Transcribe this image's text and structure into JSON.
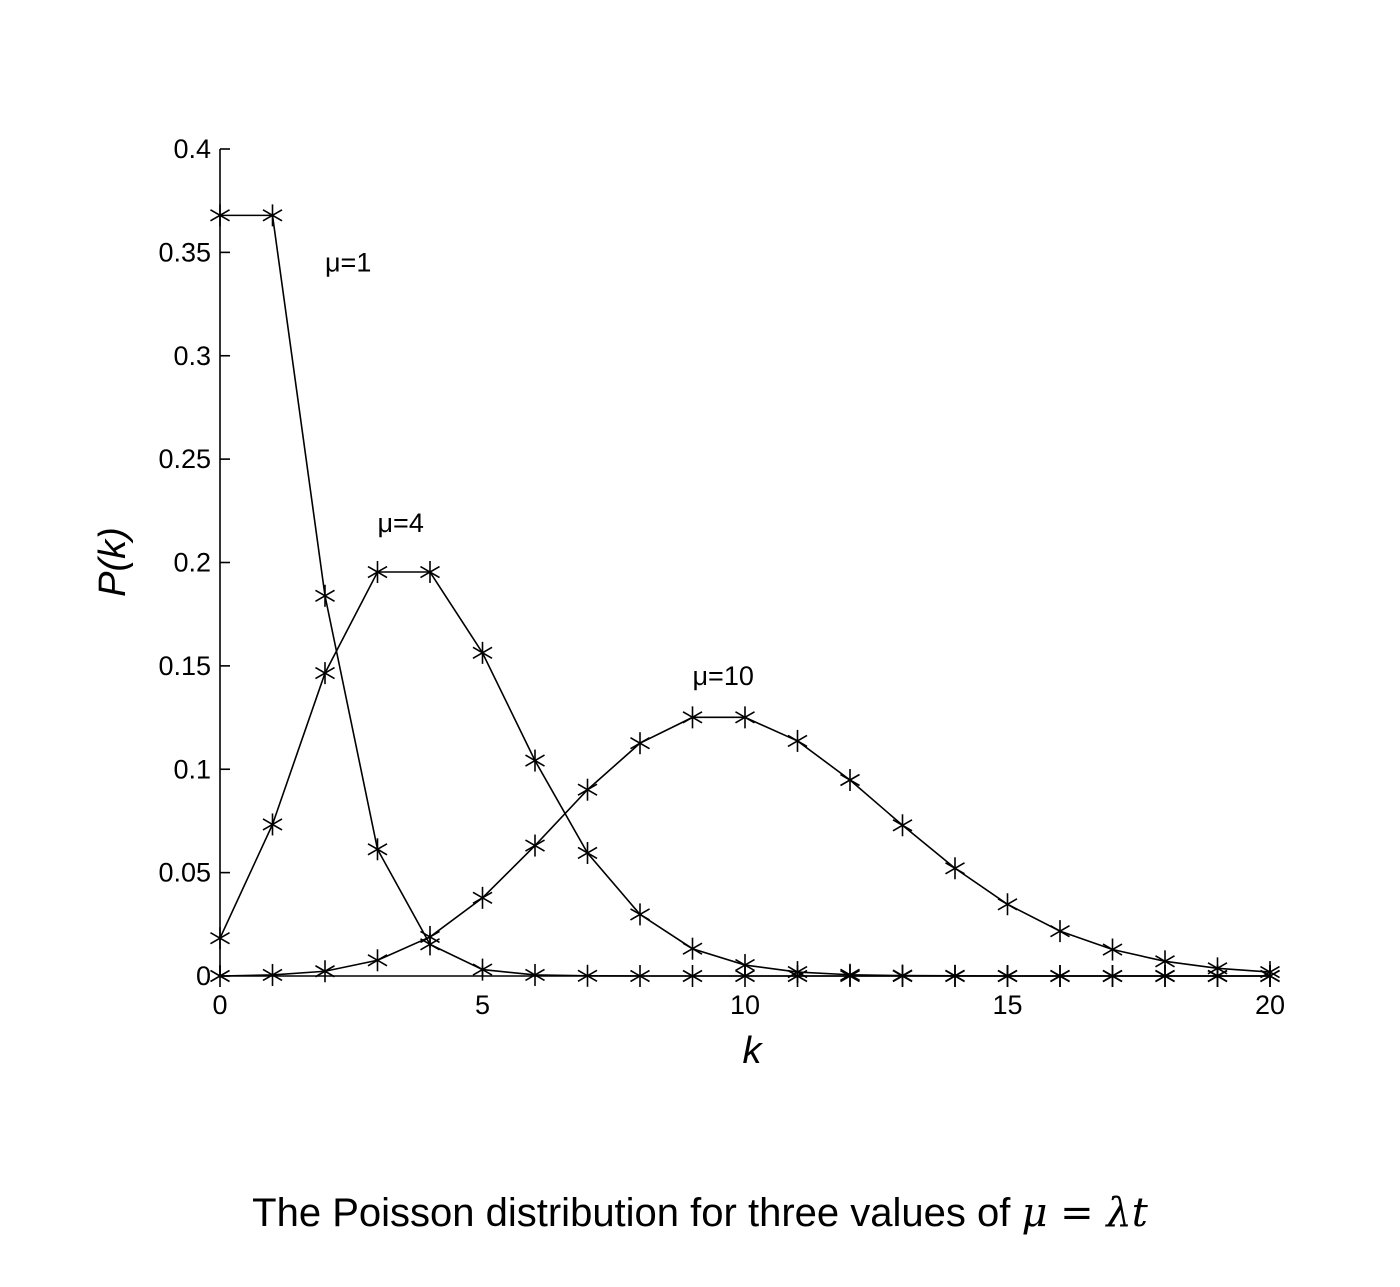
{
  "chart_data": {
    "type": "line",
    "xlabel": "k",
    "ylabel": "P(k)",
    "xlim": [
      0,
      20
    ],
    "ylim": [
      0,
      0.4
    ],
    "xticks": [
      0,
      5,
      10,
      15,
      20
    ],
    "xtick_labels": [
      "0",
      "5",
      "10",
      "15",
      "20"
    ],
    "yticks": [
      0,
      0.05,
      0.1,
      0.15,
      0.2,
      0.25,
      0.3,
      0.35,
      0.4
    ],
    "ytick_labels": [
      "0",
      "0.05",
      "0.1",
      "0.15",
      "0.2",
      "0.25",
      "0.3",
      "0.35",
      "0.4"
    ],
    "grid": false,
    "marker": "asterisk",
    "x": [
      0,
      1,
      2,
      3,
      4,
      5,
      6,
      7,
      8,
      9,
      10,
      11,
      12,
      13,
      14,
      15,
      16,
      17,
      18,
      19,
      20
    ],
    "series": [
      {
        "values": [
          0.3679,
          0.3679,
          0.1839,
          0.0613,
          0.0153,
          0.0031,
          0.0005,
          0.0001,
          0,
          0,
          0,
          0,
          0,
          0,
          0,
          0,
          0,
          0,
          0,
          0,
          0
        ]
      },
      {
        "values": [
          0.0183,
          0.0733,
          0.1465,
          0.1954,
          0.1954,
          0.1563,
          0.1042,
          0.0595,
          0.0298,
          0.0132,
          0.0053,
          0.0019,
          0.0006,
          0.0002,
          0.0001,
          0,
          0,
          0,
          0,
          0,
          0
        ]
      },
      {
        "values": [
          0,
          0.0005,
          0.0023,
          0.0076,
          0.0189,
          0.0378,
          0.0631,
          0.0901,
          0.1126,
          0.1251,
          0.1251,
          0.1137,
          0.0948,
          0.0729,
          0.0521,
          0.0347,
          0.0217,
          0.0128,
          0.0071,
          0.0037,
          0.0019
        ]
      }
    ],
    "annotations": [
      {
        "text": "μ=1",
        "x": 2.0,
        "y": 0.345
      },
      {
        "text": "μ=4",
        "x": 3.0,
        "y": 0.219
      },
      {
        "text": "μ=10",
        "x": 9.0,
        "y": 0.145
      }
    ]
  },
  "caption": {
    "text": "The Poisson distribution for three values of ",
    "math": "μ = λt"
  }
}
